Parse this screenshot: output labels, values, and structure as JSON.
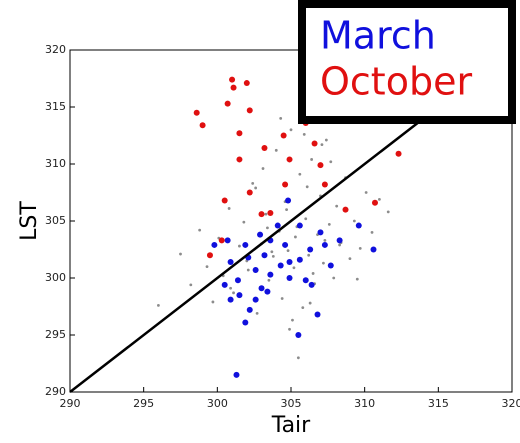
{
  "chart_data": {
    "type": "scatter",
    "xlabel": "Tair",
    "ylabel": "LST",
    "xlim": [
      290,
      320
    ],
    "ylim": [
      290,
      320
    ],
    "xticks": [
      290,
      295,
      300,
      305,
      310,
      315,
      320
    ],
    "yticks": [
      290,
      295,
      300,
      305,
      310,
      315,
      320
    ],
    "legend": "upper right",
    "series": [
      {
        "color": "#8c8c8c",
        "x": [
          296.0,
          297.5,
          298.2,
          298.8,
          299.3,
          299.7,
          300.1,
          300.4,
          300.8,
          301.1,
          301.5,
          301.8,
          302.1,
          302.4,
          302.7,
          303.0,
          303.3,
          303.5,
          303.8,
          304.0,
          304.2,
          304.4,
          304.6,
          304.8,
          305.0,
          305.2,
          305.4,
          305.6,
          305.8,
          306.0,
          306.2,
          306.4,
          306.6,
          306.8,
          307.0,
          307.2,
          307.4,
          307.6,
          307.9,
          308.1,
          308.4,
          308.7,
          309.0,
          309.3,
          309.7,
          310.1,
          310.5,
          311.0,
          311.6,
          303.1,
          304.3,
          305.1,
          305.9,
          306.5,
          307.3,
          302.6,
          303.7,
          304.9,
          306.1,
          307.7,
          300.9,
          302.0,
          303.4,
          304.7,
          305.5,
          306.3,
          307.1,
          308.3,
          309.5,
          305.3
        ],
        "values": [
          297.6,
          302.1,
          299.4,
          304.2,
          301.0,
          297.9,
          303.5,
          300.2,
          306.1,
          298.7,
          302.8,
          304.9,
          300.7,
          308.3,
          296.9,
          303.0,
          305.6,
          299.8,
          301.9,
          311.2,
          304.1,
          298.2,
          306.7,
          302.4,
          313.0,
          300.9,
          304.5,
          309.1,
          297.4,
          305.2,
          302.0,
          310.4,
          299.5,
          303.8,
          307.2,
          301.3,
          312.1,
          304.7,
          300.0,
          306.3,
          303.1,
          308.8,
          301.7,
          305.0,
          302.6,
          307.5,
          304.0,
          306.9,
          305.8,
          309.6,
          314.0,
          296.3,
          312.6,
          300.4,
          303.3,
          307.9,
          302.3,
          295.5,
          308.0,
          310.2,
          299.1,
          301.5,
          304.4,
          306.0,
          293.0,
          297.8,
          311.7,
          302.9,
          299.9,
          303.6
        ]
      },
      {
        "name": "March",
        "color": "#1010dd",
        "x": [
          301.3,
          305.5,
          306.8,
          301.9,
          300.9,
          301.5,
          302.6,
          303.0,
          303.6,
          304.9,
          305.6,
          306.3,
          307.3,
          308.3,
          309.6,
          310.6,
          304.8,
          305.6,
          304.1,
          302.9,
          301.9,
          300.7,
          299.8,
          300.9,
          302.1,
          303.6,
          304.6,
          307.0,
          307.7,
          306.0,
          302.6,
          301.4,
          300.5,
          303.2,
          304.9,
          306.4,
          302.2,
          303.4,
          304.3
        ],
        "values": [
          291.5,
          295.0,
          296.8,
          296.1,
          298.1,
          298.5,
          298.1,
          299.1,
          300.3,
          300.0,
          301.6,
          302.5,
          302.9,
          303.3,
          304.6,
          302.5,
          306.8,
          304.6,
          304.6,
          303.8,
          302.9,
          303.3,
          302.9,
          301.4,
          301.8,
          303.3,
          302.9,
          304.0,
          301.1,
          299.8,
          300.7,
          299.8,
          299.4,
          302.0,
          301.4,
          299.4,
          297.2,
          298.8,
          301.1
        ]
      },
      {
        "name": "October",
        "color": "#e01010",
        "x": [
          298.6,
          299.0,
          300.7,
          301.1,
          301.0,
          302.0,
          301.5,
          302.2,
          302.2,
          301.5,
          303.2,
          303.6,
          304.6,
          304.5,
          306.6,
          307.0,
          307.3,
          308.7,
          310.7,
          312.3,
          299.5,
          300.3,
          303.0,
          306.0,
          304.9,
          300.5
        ],
        "values": [
          314.5,
          313.4,
          315.3,
          316.7,
          317.4,
          317.1,
          310.4,
          307.5,
          314.7,
          312.7,
          311.4,
          305.7,
          308.2,
          312.5,
          311.8,
          309.9,
          308.2,
          306.0,
          306.6,
          310.9,
          302.0,
          303.3,
          305.6,
          313.6,
          310.4,
          306.8
        ]
      },
      {
        "type": "line",
        "color": "#000000",
        "x": [
          290,
          320
        ],
        "values": [
          290,
          320
        ]
      }
    ]
  }
}
